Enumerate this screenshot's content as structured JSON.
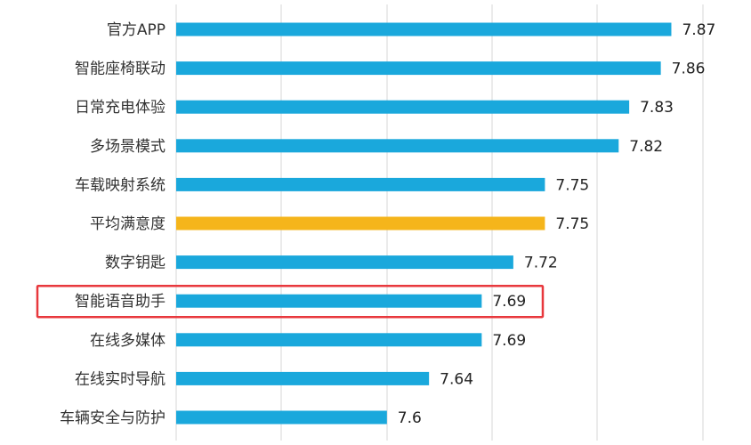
{
  "chart_data": {
    "type": "bar",
    "orientation": "horizontal",
    "categories": [
      "官方APP",
      "智能座椅联动",
      "日常充电体验",
      "多场景模式",
      "车载映射系统",
      "平均满意度",
      "数字钥匙",
      "智能语音助手",
      "在线多媒体",
      "在线实时导航",
      "车辆安全与防护"
    ],
    "values": [
      7.87,
      7.86,
      7.83,
      7.82,
      7.75,
      7.75,
      7.72,
      7.69,
      7.69,
      7.64,
      7.6
    ],
    "value_labels": [
      "7.87",
      "7.86",
      "7.83",
      "7.82",
      "7.75",
      "7.75",
      "7.72",
      "7.69",
      "7.69",
      "7.64",
      "7.6"
    ],
    "xlim": [
      7.4,
      7.9
    ],
    "grid": true,
    "title": "",
    "xlabel": "",
    "ylabel": "",
    "highlight_category": "平均满意度",
    "boxed_category": "智能语音助手",
    "colors": {
      "bar": "#1aa8dc",
      "highlight": "#f5b51b",
      "box": "#e8383d",
      "grid": "#d7d7d7"
    }
  }
}
